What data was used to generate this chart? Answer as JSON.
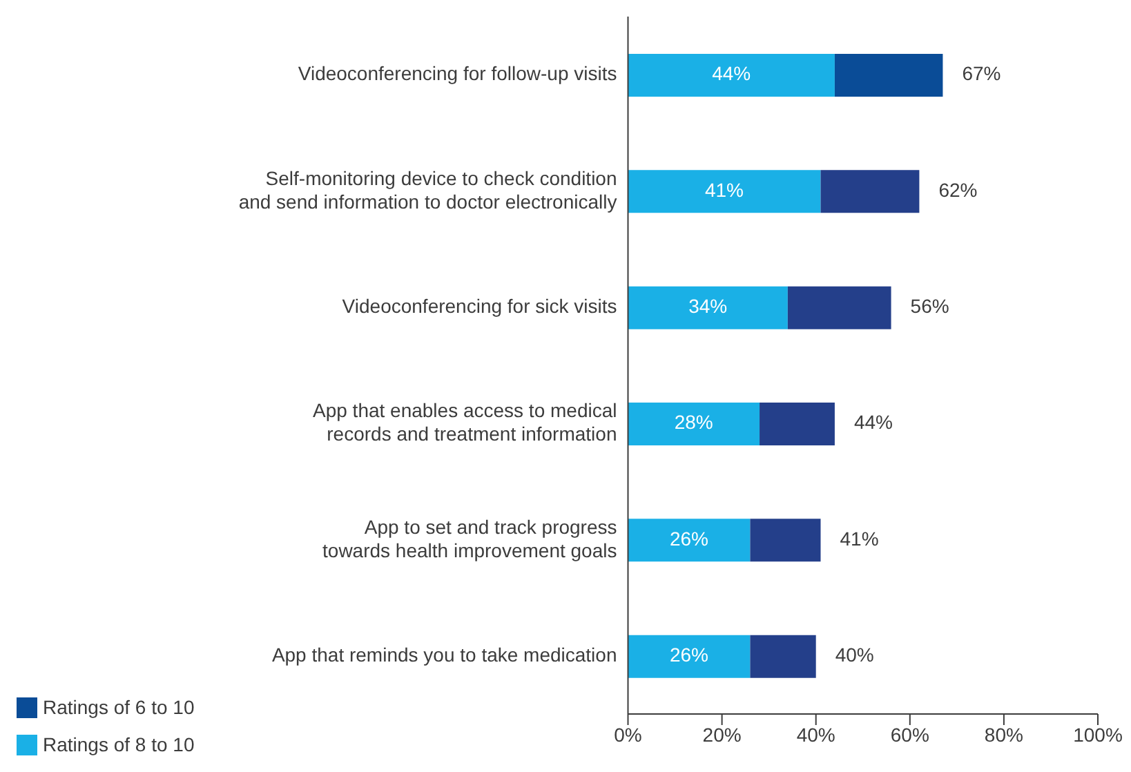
{
  "chart_data": {
    "type": "bar",
    "orientation": "horizontal",
    "stacked": true,
    "categories": [
      "Videoconferencing for follow-up visits",
      "Self-monitoring device to check condition\nand send information to doctor electronically",
      "Videoconferencing for sick visits",
      "App that enables access to medical\nrecords and treatment information",
      "App to set and track progress\ntowards health improvement goals",
      "App that reminds you to take medication"
    ],
    "series": [
      {
        "name": "Ratings of 8 to 10",
        "color": "#1ab0e6",
        "values": [
          44,
          41,
          34,
          28,
          26,
          26
        ],
        "value_labels": [
          "44%",
          "41%",
          "34%",
          "28%",
          "26%",
          "26%"
        ]
      },
      {
        "name": "Ratings of 6 to 10",
        "color": "#0a4c97",
        "colors": [
          "#0a4c97",
          "#243f8a",
          "#243f8a",
          "#243f8a",
          "#243f8a",
          "#243f8a"
        ],
        "values": [
          23,
          21,
          22,
          16,
          15,
          14
        ]
      }
    ],
    "totals": [
      "67%",
      "62%",
      "56%",
      "44%",
      "41%",
      "40%"
    ],
    "xlim": [
      0,
      100
    ],
    "xticks": [
      {
        "value": 0,
        "label": "0%"
      },
      {
        "value": 20,
        "label": "20%"
      },
      {
        "value": 40,
        "label": "40%"
      },
      {
        "value": 60,
        "label": "60%"
      },
      {
        "value": 80,
        "label": "80%"
      },
      {
        "value": 100,
        "label": "100%"
      }
    ],
    "grid": false,
    "legend": "bottom left"
  }
}
